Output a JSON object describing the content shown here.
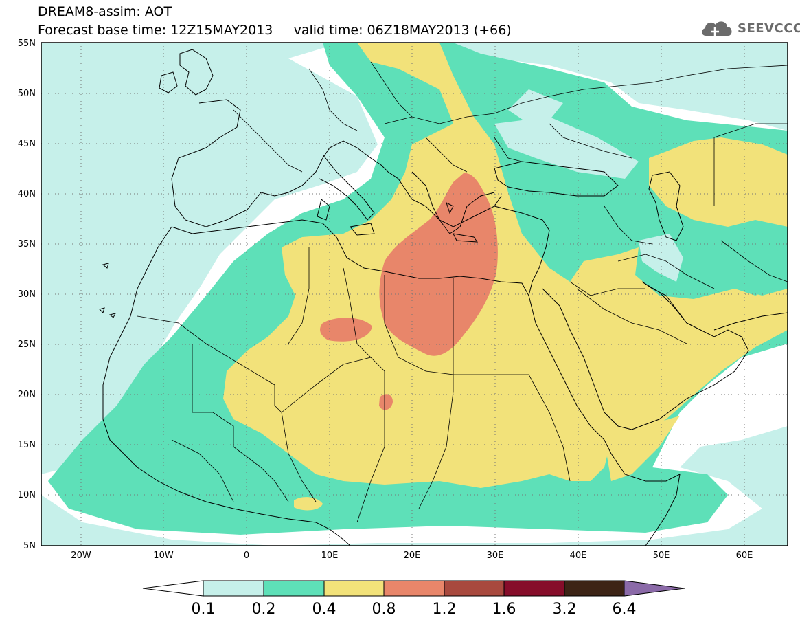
{
  "header": {
    "title_line1": "DREAM8-assim: AOT",
    "base_label": "Forecast base time: 12Z15MAY2013",
    "valid_label": "valid time: 06Z18MAY2013 (+66)",
    "brand": "SEEVCCC",
    "brand_icon": "cloud-logo-icon"
  },
  "map": {
    "lat_ticks": [
      "55N",
      "50N",
      "45N",
      "40N",
      "35N",
      "30N",
      "25N",
      "20N",
      "15N",
      "10N",
      "5N"
    ],
    "lon_ticks": [
      "20W",
      "10W",
      "0",
      "10E",
      "20E",
      "30E",
      "40E",
      "50E",
      "60E"
    ],
    "lon_range": [
      -25,
      65
    ],
    "lat_range": [
      5,
      55
    ],
    "grid": true,
    "projection": "cylindrical equidistant"
  },
  "colorbar": {
    "labels": [
      "0.1",
      "0.2",
      "0.4",
      "0.8",
      "1.2",
      "1.6",
      "3.2",
      "6.4"
    ],
    "colors": [
      "#c6f0ea",
      "#5ee0b8",
      "#f2e27a",
      "#e8866a",
      "#a8493e",
      "#860d2a",
      "#3d2416",
      "#8b6aa8"
    ],
    "extend": "both"
  }
}
